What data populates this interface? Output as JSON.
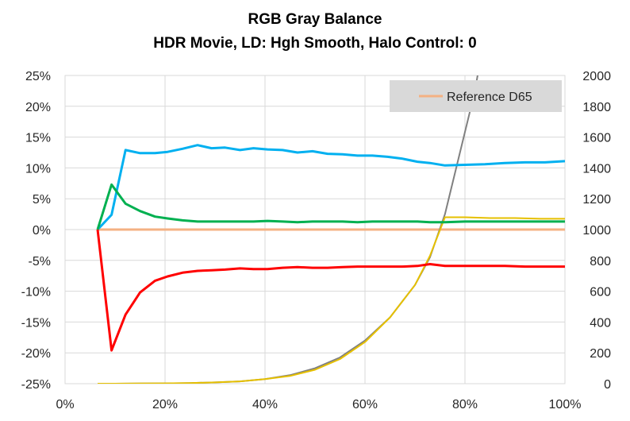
{
  "chart_data": {
    "type": "line",
    "title": "RGB Gray Balance",
    "subtitle": "HDR Movie, LD: Hgh Smooth, Halo Control: 0",
    "xlabel": "",
    "ylabel": "",
    "x_ticks": [
      "0%",
      "20%",
      "40%",
      "60%",
      "80%",
      "100%"
    ],
    "y_left_ticks": [
      "25%",
      "20%",
      "15%",
      "10%",
      "5%",
      "0%",
      "-5%",
      "-10%",
      "-15%",
      "-20%",
      "-25%"
    ],
    "y_right_ticks": [
      "2000",
      "1800",
      "1600",
      "1400",
      "1200",
      "1000",
      "800",
      "600",
      "400",
      "200",
      "0"
    ],
    "xlim": [
      0,
      100
    ],
    "ylim_left": [
      -25,
      25
    ],
    "ylim_right": [
      0,
      2000
    ],
    "grid": true,
    "legend": {
      "placement": "top-right",
      "entries": [
        "Reference D65"
      ]
    },
    "x": [
      6.5,
      9.3,
      12.1,
      15.0,
      18.0,
      20.5,
      23.5,
      26.5,
      29.3,
      32.0,
      35.0,
      37.7,
      40.5,
      43.5,
      46.5,
      49.5,
      52.5,
      55.5,
      58.5,
      61.5,
      64.5,
      67.5,
      70.5,
      73.0,
      76.0,
      80.0,
      84.0,
      88.0,
      92.0,
      96.0,
      100.0
    ],
    "series": [
      {
        "name": "Reference D65",
        "axis": "left",
        "color": "#f4b183",
        "values": [
          0,
          0,
          0,
          0,
          0,
          0,
          0,
          0,
          0,
          0,
          0,
          0,
          0,
          0,
          0,
          0,
          0,
          0,
          0,
          0,
          0,
          0,
          0,
          0,
          0,
          0,
          0,
          0,
          0,
          0,
          0
        ]
      },
      {
        "axis": "left",
        "color": "#00b0f0",
        "values": [
          0,
          2.4,
          12.9,
          12.4,
          12.4,
          12.6,
          13.1,
          13.7,
          13.2,
          13.3,
          12.9,
          13.2,
          13.0,
          12.9,
          12.5,
          12.7,
          12.3,
          12.2,
          12.0,
          12.0,
          11.8,
          11.5,
          11.0,
          10.8,
          10.4,
          10.5,
          10.6,
          10.8,
          10.9,
          10.9,
          11.1
        ]
      },
      {
        "axis": "left",
        "color": "#00b050",
        "values": [
          0,
          7.3,
          4.2,
          3.0,
          2.1,
          1.8,
          1.5,
          1.3,
          1.3,
          1.3,
          1.3,
          1.3,
          1.4,
          1.3,
          1.2,
          1.3,
          1.3,
          1.3,
          1.2,
          1.3,
          1.3,
          1.3,
          1.3,
          1.2,
          1.2,
          1.3,
          1.3,
          1.3,
          1.3,
          1.3,
          1.3
        ]
      },
      {
        "axis": "left",
        "color": "#ff0000",
        "values": [
          0,
          -19.6,
          -13.8,
          -10.2,
          -8.3,
          -7.6,
          -7.0,
          -6.7,
          -6.6,
          -6.5,
          -6.3,
          -6.4,
          -6.4,
          -6.2,
          -6.1,
          -6.2,
          -6.2,
          -6.1,
          -6.0,
          -6.0,
          -6.0,
          -6.0,
          -5.9,
          -5.6,
          -5.9,
          -5.9,
          -5.9,
          -5.9,
          -6.0,
          -6.0,
          -6.0
        ]
      },
      {
        "axis": "right",
        "color": "#808080",
        "x": [
          6.5,
          10,
          15,
          20,
          25,
          30,
          35,
          40,
          45,
          50,
          55,
          60,
          65,
          70,
          73,
          76,
          79,
          82,
          84
        ],
        "values": [
          0,
          0,
          1,
          2,
          4,
          8,
          15,
          30,
          55,
          100,
          170,
          280,
          430,
          640,
          820,
          1100,
          1500,
          1900,
          2280
        ]
      },
      {
        "axis": "right",
        "color": "#e6c000",
        "x": [
          6.5,
          10,
          15,
          20,
          25,
          30,
          35,
          40,
          45,
          50,
          55,
          60,
          65,
          70,
          73,
          76,
          80,
          85,
          90,
          95,
          100
        ],
        "values": [
          0,
          0,
          1,
          2,
          4,
          8,
          15,
          30,
          50,
          90,
          160,
          270,
          430,
          640,
          830,
          1080,
          1080,
          1075,
          1075,
          1070,
          1070
        ]
      }
    ]
  }
}
